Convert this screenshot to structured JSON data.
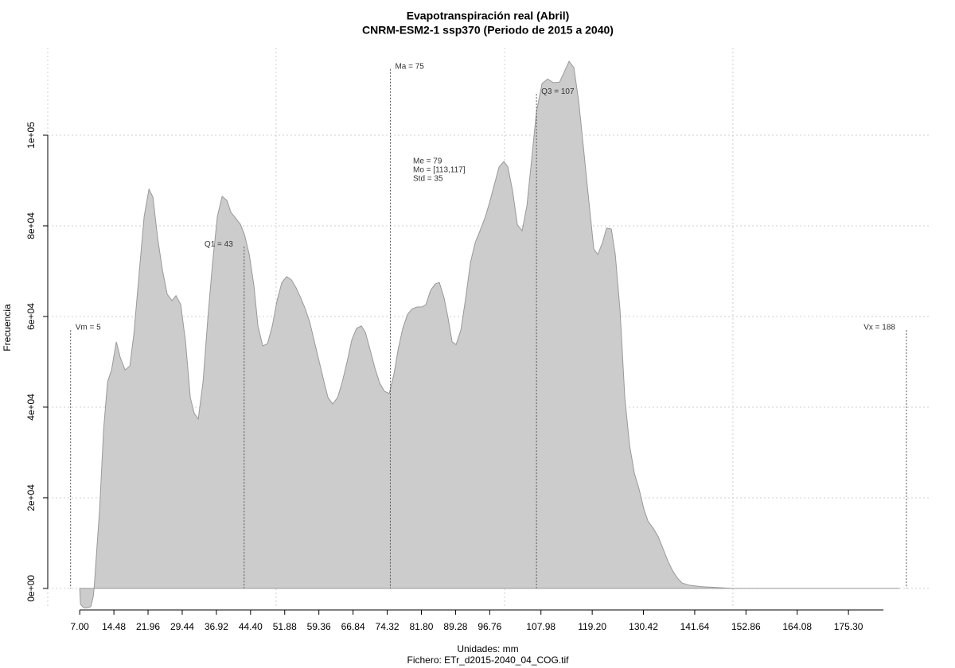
{
  "chart_data": {
    "type": "area",
    "title": "Evapotranspiración real (Abril)",
    "subtitle": "CNRM-ESM2-1 ssp370 (Periodo de 2015 a 2040)",
    "x_label": "Unidades: mm",
    "y_label": "Frecuencia",
    "footnote": "Fichero: ETr_d2015-2040_04_COG.tif",
    "color": "#cccccc",
    "line_color": "#999999",
    "grid": true,
    "xlim": [
      0,
      193.4
    ],
    "ylim": [
      -4400,
      119300
    ],
    "xgrid": [
      0,
      50,
      100,
      150
    ],
    "xticks": [
      {
        "value": 7,
        "label": "7.00"
      },
      14.48,
      21.96,
      29.44,
      36.92,
      {
        "value": 44.4,
        "label": "44.40"
      },
      51.88,
      59.36,
      66.84,
      74.32,
      {
        "value": 81.8,
        "label": "81.80"
      },
      89.28,
      96.76,
      107.98,
      {
        "value": 119.2,
        "label": "119.20"
      },
      130.42,
      141.64,
      152.86,
      164.08,
      {
        "value": 175.3,
        "label": "175.30"
      }
    ],
    "yticks": [
      {
        "value": 0,
        "label": "0e+00"
      },
      {
        "value": 20000,
        "label": "2e+04"
      },
      {
        "value": 40000,
        "label": "4e+04"
      },
      {
        "value": 60000,
        "label": "6e+04"
      },
      {
        "value": 80000,
        "label": "8e+04"
      },
      {
        "value": 100000,
        "label": "1e+05"
      }
    ],
    "x": [
      7.0,
      7.17,
      7.87,
      8.74,
      9.44,
      9.96,
      10.14,
      11.36,
      12.23,
      13.1,
      13.97,
      15.01,
      15.89,
      16.93,
      17.98,
      18.85,
      20.07,
      21.11,
      22.16,
      23.03,
      24.07,
      25.12,
      26.16,
      27.21,
      28.08,
      29.12,
      30.17,
      31.21,
      32.08,
      32.95,
      34.0,
      35.05,
      36.09,
      37.14,
      38.18,
      39.23,
      40.1,
      41.14,
      42.19,
      43.06,
      44.11,
      45.15,
      46.02,
      47.07,
      48.11,
      49.16,
      50.2,
      51.25,
      52.3,
      53.34,
      54.39,
      55.43,
      56.3,
      57.35,
      58.39,
      59.44,
      60.48,
      61.36,
      62.4,
      63.45,
      64.49,
      65.54,
      66.58,
      67.63,
      68.67,
      69.54,
      70.59,
      71.63,
      72.68,
      73.72,
      74.77,
      75.82,
      76.69,
      77.73,
      78.78,
      79.82,
      80.87,
      81.91,
      82.78,
      83.83,
      84.87,
      85.74,
      86.79,
      87.66,
      88.53,
      89.4,
      90.45,
      91.49,
      92.54,
      93.58,
      94.63,
      95.67,
      96.72,
      97.77,
      98.81,
      99.86,
      100.73,
      101.77,
      102.82,
      103.86,
      104.91,
      105.95,
      107.0,
      108.22,
      109.44,
      110.66,
      112.05,
      113.1,
      114.14,
      115.19,
      116.24,
      117.28,
      118.33,
      119.55,
      120.42,
      121.46,
      122.33,
      123.38,
      124.25,
      125.29,
      126.34,
      127.38,
      128.43,
      129.47,
      130.52,
      131.39,
      132.61,
      133.66,
      134.7,
      135.75,
      136.8,
      137.84,
      138.89,
      140.45,
      142.89,
      146.37,
      149.86,
      186.44
    ],
    "values": [
      0,
      -3500,
      -4300,
      -4300,
      -4000,
      -1800,
      0,
      17500,
      35100,
      45600,
      48200,
      54400,
      50900,
      48200,
      49100,
      56100,
      70200,
      82100,
      88100,
      86300,
      77200,
      70200,
      64900,
      63500,
      64600,
      62600,
      54400,
      42100,
      38600,
      37400,
      45600,
      59600,
      71900,
      82100,
      86500,
      85600,
      83000,
      81700,
      80300,
      78100,
      73700,
      66700,
      57900,
      53500,
      54000,
      57900,
      63500,
      67500,
      68800,
      68100,
      66300,
      64000,
      61900,
      58800,
      54400,
      50000,
      45600,
      42100,
      40700,
      42100,
      45600,
      50000,
      54900,
      57400,
      57900,
      56500,
      52600,
      48600,
      45300,
      43500,
      43000,
      47400,
      52600,
      57400,
      60500,
      61700,
      62100,
      62100,
      62600,
      65800,
      67200,
      67500,
      64000,
      59600,
      54400,
      53800,
      57000,
      64000,
      71900,
      76300,
      78900,
      81600,
      85100,
      89100,
      93000,
      94200,
      93000,
      87700,
      80200,
      78900,
      84500,
      94700,
      105200,
      111400,
      112400,
      111600,
      111700,
      114000,
      116300,
      114900,
      107500,
      97300,
      86800,
      74900,
      73700,
      76300,
      79500,
      79300,
      73700,
      61400,
      42100,
      31600,
      25400,
      21900,
      17500,
      14900,
      13200,
      11400,
      8800,
      6100,
      3900,
      2300,
      1200,
      700,
      400,
      200,
      0,
      0
    ],
    "markers": [
      {
        "label": "Vm = 5",
        "x": 5,
        "y": 57000
      },
      {
        "label": "Q1 = 43",
        "x": 43,
        "y": 75400
      },
      {
        "label": "Ma = 75",
        "x": 75,
        "y": 114600
      },
      {
        "label": "Q3 = 107",
        "x": 107,
        "y": 109100
      },
      {
        "label": "Vx = 188",
        "x": 188,
        "y": 57000
      }
    ],
    "stats": [
      "Me = 79",
      "Mo = [113,117]",
      "Std = 35"
    ]
  }
}
